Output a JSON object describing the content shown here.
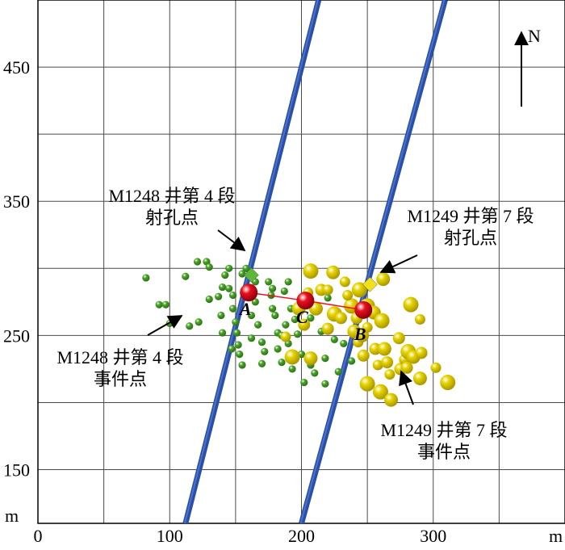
{
  "chart_data": {
    "type": "scatter",
    "title": "",
    "xlabel": "m",
    "ylabel": "m",
    "xlim": [
      0,
      400
    ],
    "ylim": [
      110,
      500
    ],
    "grid": true,
    "x_ticks": [
      0,
      100,
      200,
      300
    ],
    "y_ticks": [
      150,
      250,
      350,
      450
    ],
    "x_tick_labels": [
      "0",
      "100",
      "200",
      "300"
    ],
    "y_tick_labels": [
      "150",
      "250",
      "350",
      "450"
    ],
    "north_label": "N",
    "colors": {
      "wells": "#2a4fa8",
      "well_highlight": "#5a82d6",
      "m1248_events": "#4aa528",
      "m1249_events": "#e6d400",
      "perforation_m1248": "#5db83a",
      "perforation_m1249": "#f2e01a",
      "centers": "#e8101e",
      "connector": "#e8101e"
    },
    "wells": [
      {
        "name": "M1248",
        "x": [
          112,
          213
        ],
        "y": [
          110,
          500
        ]
      },
      {
        "name": "M1249",
        "x": [
          200,
          309
        ],
        "y": [
          110,
          500
        ]
      }
    ],
    "perforation_points": [
      {
        "label_lines": [
          "M1248 井第 4 段",
          "射孔点"
        ],
        "x": 162,
        "y": 295
      },
      {
        "label_lines": [
          "M1249 井第 7 段",
          "射孔点"
        ],
        "x": 252,
        "y": 288
      }
    ],
    "event_clusters": [
      {
        "label_lines": [
          "M1248 井第 4 段",
          "事件点"
        ]
      },
      {
        "label_lines": [
          "M1249 井第 7 段",
          "事件点"
        ]
      }
    ],
    "centers": [
      {
        "label": "A",
        "x": 160,
        "y": 282
      },
      {
        "label": "C",
        "x": 203,
        "y": 276
      },
      {
        "label": "B",
        "x": 247,
        "y": 269
      }
    ],
    "series": [
      {
        "values": [
          [
            82,
            293
          ],
          [
            92,
            273
          ],
          [
            97,
            273
          ],
          [
            112,
            294
          ],
          [
            121,
            305
          ],
          [
            128,
            305
          ],
          [
            130,
            301
          ],
          [
            122,
            260
          ],
          [
            130,
            277
          ],
          [
            137,
            279
          ],
          [
            139,
            265
          ],
          [
            140,
            286
          ],
          [
            142,
            295
          ],
          [
            145,
            300
          ],
          [
            145,
            285
          ],
          [
            148,
            280
          ],
          [
            148,
            270
          ],
          [
            150,
            260
          ],
          [
            151,
            252
          ],
          [
            152,
            243
          ],
          [
            153,
            236
          ],
          [
            155,
            228
          ],
          [
            155,
            296
          ],
          [
            158,
            300
          ],
          [
            162,
            265
          ],
          [
            162,
            248
          ],
          [
            165,
            290
          ],
          [
            165,
            275
          ],
          [
            167,
            258
          ],
          [
            170,
            245
          ],
          [
            172,
            238
          ],
          [
            175,
            290
          ],
          [
            177,
            280
          ],
          [
            178,
            270
          ],
          [
            180,
            265
          ],
          [
            182,
            252
          ],
          [
            182,
            240
          ],
          [
            185,
            230
          ],
          [
            185,
            250
          ],
          [
            187,
            283
          ],
          [
            188,
            258
          ],
          [
            190,
            244
          ],
          [
            190,
            290
          ],
          [
            192,
            270
          ],
          [
            193,
            225
          ],
          [
            195,
            262
          ],
          [
            197,
            251
          ],
          [
            200,
            236
          ],
          [
            202,
            215
          ],
          [
            205,
            279
          ],
          [
            207,
            263
          ],
          [
            207,
            228
          ],
          [
            210,
            222
          ],
          [
            211,
            270
          ],
          [
            215,
            253
          ],
          [
            218,
            233
          ],
          [
            220,
            278
          ],
          [
            225,
            247
          ],
          [
            228,
            223
          ],
          [
            232,
            244
          ],
          [
            238,
            231
          ],
          [
            240,
            254
          ],
          [
            218,
            214
          ],
          [
            115,
            257
          ],
          [
            100,
            259
          ],
          [
            140,
            252
          ],
          [
            147,
            240
          ],
          [
            170,
            229
          ],
          [
            178,
            285
          ]
        ]
      },
      {
        "values": [
          [
            188,
            249
          ],
          [
            193,
            234
          ],
          [
            198,
            270
          ],
          [
            202,
            258
          ],
          [
            205,
            282
          ],
          [
            207,
            298
          ],
          [
            211,
            270
          ],
          [
            215,
            284
          ],
          [
            220,
            284
          ],
          [
            225,
            266
          ],
          [
            224,
            297
          ],
          [
            230,
            263
          ],
          [
            233,
            290
          ],
          [
            238,
            272
          ],
          [
            240,
            253
          ],
          [
            242,
            263
          ],
          [
            243,
            245
          ],
          [
            244,
            284
          ],
          [
            246,
            250
          ],
          [
            247,
            235
          ],
          [
            250,
            256
          ],
          [
            250,
            272
          ],
          [
            255,
            267
          ],
          [
            256,
            240
          ],
          [
            258,
            228
          ],
          [
            261,
            261
          ],
          [
            263,
            240
          ],
          [
            265,
            230
          ],
          [
            267,
            221
          ],
          [
            260,
            208
          ],
          [
            268,
            202
          ],
          [
            275,
            225
          ],
          [
            278,
            232
          ],
          [
            281,
            238
          ],
          [
            285,
            234
          ],
          [
            280,
            226
          ],
          [
            290,
            262
          ],
          [
            283,
            273
          ],
          [
            290,
            218
          ],
          [
            291,
            237
          ],
          [
            302,
            226
          ],
          [
            311,
            215
          ],
          [
            207,
            233
          ],
          [
            220,
            255
          ],
          [
            235,
            280
          ],
          [
            250,
            214
          ],
          [
            262,
            292
          ],
          [
            274,
            248
          ]
        ]
      }
    ]
  }
}
